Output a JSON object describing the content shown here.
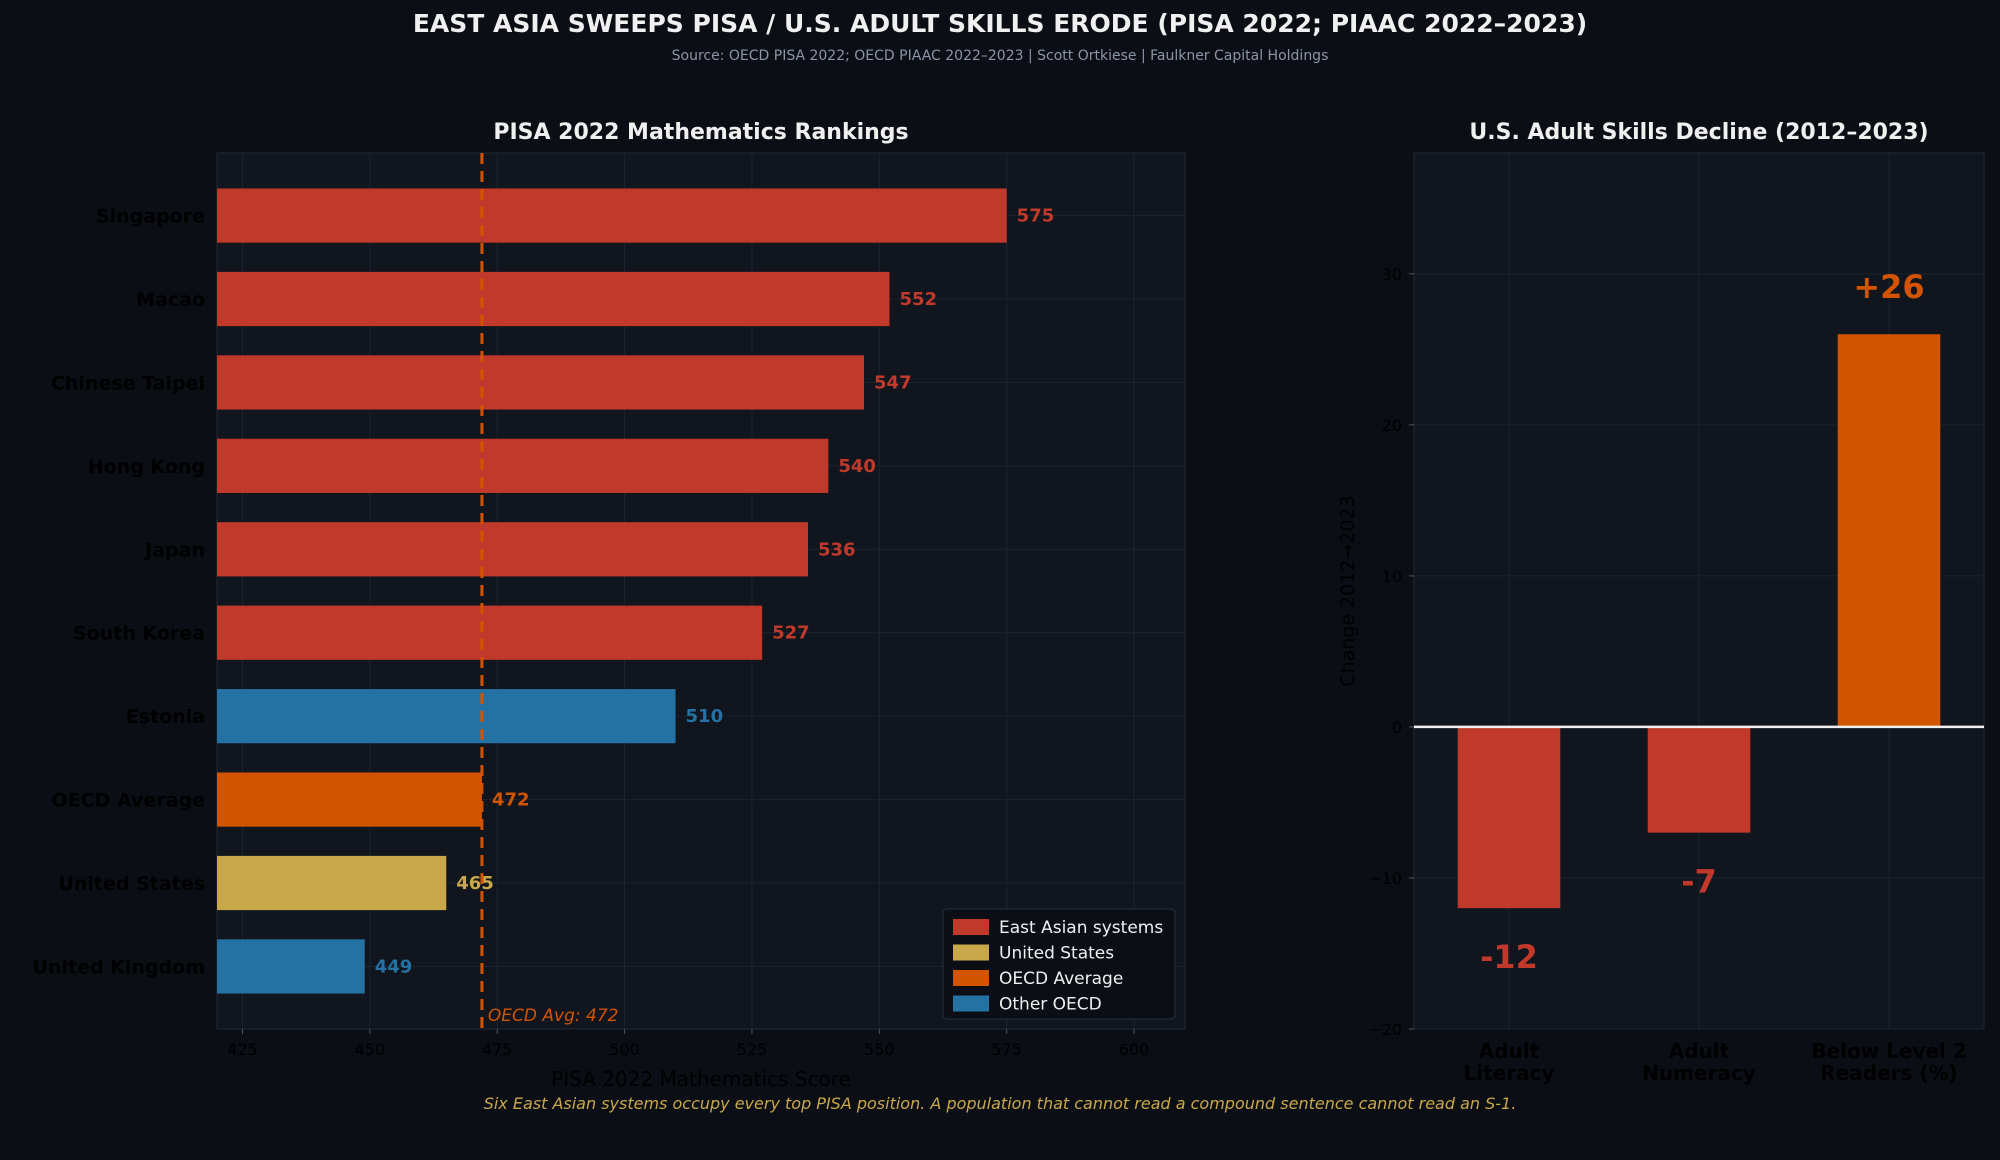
{
  "header": {
    "title": "EAST ASIA SWEEPS PISA / U.S. ADULT SKILLS ERODE (PISA 2022; PIAAC 2022–2023)",
    "source": "Source: OECD PISA 2022; OECD PIAAC 2022–2023  |  Scott Ortkiese  |  Faulkner Capital Holdings"
  },
  "footer": {
    "caption": "Six East Asian systems occupy every top PISA position. A population that cannot read a compound sentence cannot read an S-1."
  },
  "colors": {
    "east_asian": "#c0392b",
    "united_states": "#c9a84c",
    "oecd_average": "#d35400",
    "other_oecd": "#2471a3",
    "background": "#0b0e15",
    "panel": "#10151e"
  },
  "chart_data": [
    {
      "type": "bar",
      "orientation": "horizontal",
      "title": "PISA 2022 Mathematics Rankings",
      "xlabel": "PISA 2022 Mathematics Score",
      "ylabel": "",
      "xlim": [
        420,
        610
      ],
      "xticks": [
        425,
        450,
        475,
        500,
        525,
        550,
        575,
        600
      ],
      "grid": true,
      "categories": [
        "Singapore",
        "Macao",
        "Chinese Taipei",
        "Hong Kong",
        "Japan",
        "South Korea",
        "Estonia",
        "OECD Average",
        "United States",
        "United Kingdom"
      ],
      "values": [
        575,
        552,
        547,
        540,
        536,
        527,
        510,
        472,
        465,
        449
      ],
      "groups": [
        "east_asian",
        "east_asian",
        "east_asian",
        "east_asian",
        "east_asian",
        "east_asian",
        "other_oecd",
        "oecd_average",
        "united_states",
        "other_oecd"
      ],
      "reference_line": {
        "value": 472,
        "label": "OECD Avg: 472",
        "style": "dashed"
      },
      "legend": {
        "placement": "bottom-right",
        "entries": [
          {
            "key": "east_asian",
            "label": "East Asian systems"
          },
          {
            "key": "united_states",
            "label": "United States"
          },
          {
            "key": "oecd_average",
            "label": "OECD Average"
          },
          {
            "key": "other_oecd",
            "label": "Other OECD"
          }
        ]
      }
    },
    {
      "type": "bar",
      "title": "U.S. Adult Skills Decline (2012–2023)",
      "xlabel": "",
      "ylabel": "Change 2012→2023",
      "ylim": [
        -20,
        38
      ],
      "yticks": [
        -20,
        -10,
        0,
        10,
        20,
        30
      ],
      "grid": true,
      "categories": [
        "Adult Literacy",
        "Adult Numeracy",
        "Below Level 2 Readers (%)"
      ],
      "category_lines": [
        [
          "Adult",
          "Literacy"
        ],
        [
          "Adult",
          "Numeracy"
        ],
        [
          "Below Level 2",
          "Readers (%)"
        ]
      ],
      "values": [
        -12,
        -7,
        26
      ],
      "value_labels": [
        "-12",
        "-7",
        "+26"
      ],
      "groups": [
        "east_asian",
        "east_asian",
        "oecd_average"
      ]
    }
  ]
}
